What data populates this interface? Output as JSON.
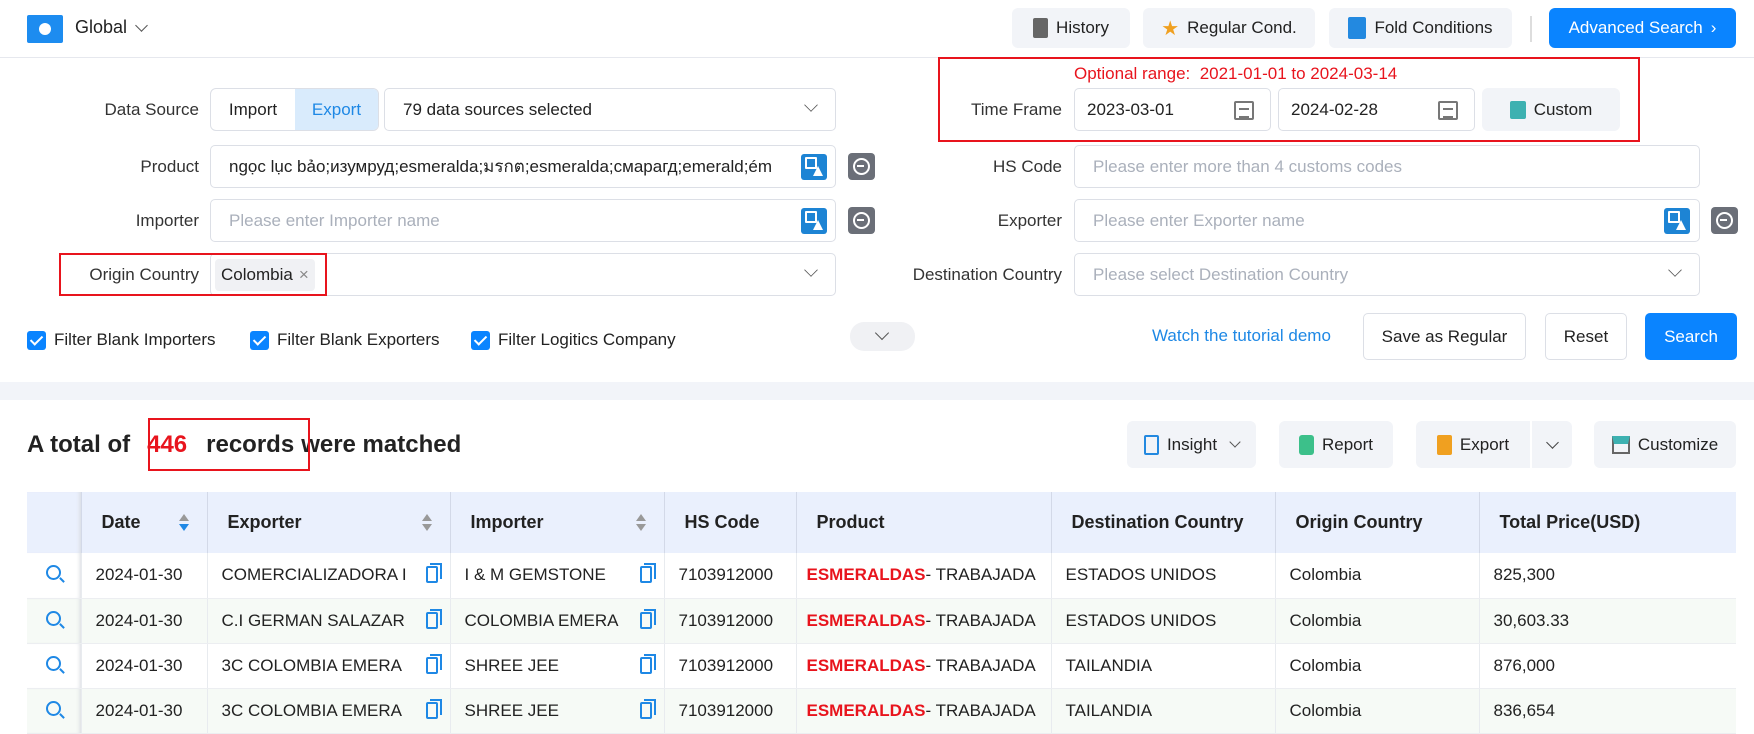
{
  "topbar": {
    "scope": "Global",
    "history": "History",
    "regular": "Regular Cond.",
    "fold": "Fold Conditions",
    "advanced": "Advanced Search"
  },
  "form": {
    "data_source_label": "Data Source",
    "import": "Import",
    "export": "Export",
    "sources": "79 data sources selected",
    "optional_range": "Optional range:  2021-01-01 to 2024-03-14",
    "time_frame_label": "Time Frame",
    "start_date": "2023-03-01",
    "end_date": "2024-02-28",
    "custom": "Custom",
    "product_label": "Product",
    "product_value": "ngọc lục bảo;изумруд;esmeralda;มรกต;esmeralda;смарагд;emerald;ém",
    "hs_label": "HS Code",
    "hs_placeholder": "Please enter more than 4 customs codes",
    "importer_label": "Importer",
    "importer_placeholder": "Please enter Importer name",
    "exporter_label": "Exporter",
    "exporter_placeholder": "Please enter Exporter name",
    "origin_label": "Origin Country",
    "origin_tag": "Colombia",
    "destination_label": "Destination Country",
    "destination_placeholder": "Please select Destination Country",
    "filters": [
      "Filter Blank Importers",
      "Filter Blank Exporters",
      "Filter Logitics Company"
    ],
    "tutorial": "Watch the tutorial demo",
    "save_regular": "Save as Regular",
    "reset": "Reset",
    "search": "Search"
  },
  "results": {
    "prefix": "A total of",
    "count": "446",
    "records": "records",
    "suffix": "were matched",
    "insight": "Insight",
    "report": "Report",
    "export": "Export",
    "customize": "Customize"
  },
  "table": {
    "headers": [
      "Date",
      "Exporter",
      "Importer",
      "HS Code",
      "Product",
      "Destination Country",
      "Origin Country",
      "Total Price(USD)"
    ],
    "rows": [
      {
        "date": "2024-01-30",
        "exporter": "COMERCIALIZADORA I",
        "importer": "I & M GEMSTONE",
        "hs": "7103912000",
        "product_hl": "ESMERALDAS",
        "product_rest": "- TRABAJADA",
        "dest": "ESTADOS UNIDOS",
        "origin": "Colombia",
        "price": "825,300"
      },
      {
        "date": "2024-01-30",
        "exporter": "C.I GERMAN SALAZAR",
        "importer": "COLOMBIA EMERA",
        "hs": "7103912000",
        "product_hl": "ESMERALDAS",
        "product_rest": "- TRABAJADA",
        "dest": "ESTADOS UNIDOS",
        "origin": "Colombia",
        "price": "30,603.33"
      },
      {
        "date": "2024-01-30",
        "exporter": "3C COLOMBIA EMERA",
        "importer": "SHREE JEE",
        "hs": "7103912000",
        "product_hl": "ESMERALDAS",
        "product_rest": "- TRABAJADA",
        "dest": "TAILANDIA",
        "origin": "Colombia",
        "price": "876,000"
      },
      {
        "date": "2024-01-30",
        "exporter": "3C COLOMBIA EMERA",
        "importer": "SHREE JEE",
        "hs": "7103912000",
        "product_hl": "ESMERALDAS",
        "product_rest": "- TRABAJADA",
        "dest": "TAILANDIA",
        "origin": "Colombia",
        "price": "836,654"
      }
    ]
  },
  "colors": {
    "accent": "#0a84ff",
    "highlight": "#e8141d",
    "header_bg": "#eaf0fd"
  }
}
